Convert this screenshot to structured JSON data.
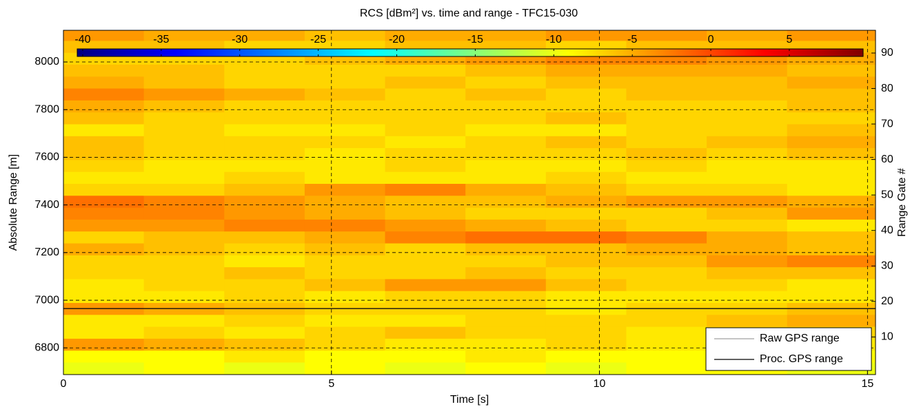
{
  "chart_data": {
    "type": "heatmap",
    "title": "RCS [dBm²] vs. time and range - TFC15-030",
    "xlabel": "Time [s]",
    "ylabel": "Absolute Range [m]",
    "y2label": "Range Gate #",
    "xlim": [
      0,
      15.15
    ],
    "xticks": [
      0,
      5,
      10,
      15
    ],
    "ylim": [
      6688,
      8133
    ],
    "yticks": [
      6800,
      7000,
      7200,
      7400,
      7600,
      7800,
      8000
    ],
    "y2lim": [
      -0.6,
      96.4
    ],
    "y2ticks": [
      10,
      20,
      30,
      40,
      50,
      60,
      70,
      80,
      90
    ],
    "grid": true,
    "colormap": "jet",
    "colorbar": {
      "clim": [
        -40.35,
        9.7
      ],
      "ticks": [
        -40,
        -35,
        -30,
        -25,
        -20,
        -15,
        -10,
        -5,
        0,
        5
      ]
    },
    "x_edges": [
      0,
      1.5,
      3,
      4.5,
      6,
      7.5,
      9,
      10.5,
      12,
      13.5,
      15.15
    ],
    "y_edges": [
      6690,
      6740,
      6790,
      6840,
      6890,
      6940,
      6990,
      7040,
      7090,
      7140,
      7190,
      7240,
      7290,
      7340,
      7390,
      7440,
      7490,
      7540,
      7590,
      7640,
      7690,
      7740,
      7790,
      7840,
      7890,
      7940,
      7990,
      8040,
      8090,
      8140
    ],
    "z": [
      [
        -10,
        -9,
        -10,
        -9,
        -10,
        -9,
        -10,
        -9,
        -9,
        -10
      ],
      [
        -9,
        -9,
        -8,
        -9,
        -9,
        -8,
        -9,
        -9,
        -8,
        -9
      ],
      [
        -4,
        -5,
        -6,
        -7,
        -8,
        -8,
        -7,
        -8,
        -7,
        -8
      ],
      [
        -8,
        -7,
        -8,
        -7,
        -6,
        -7,
        -7,
        -8,
        -7,
        -7
      ],
      [
        -8,
        -8,
        -7,
        -8,
        -8,
        -7,
        -7,
        -7,
        -6,
        -5
      ],
      [
        -4,
        -5,
        -6,
        -7,
        -7,
        -7,
        -8,
        -7,
        -7,
        -6
      ],
      [
        -8,
        -8,
        -7,
        -8,
        -7,
        -7,
        -8,
        -8,
        -8,
        -8
      ],
      [
        -8,
        -7,
        -7,
        -6,
        -4,
        -4,
        -6,
        -7,
        -7,
        -8
      ],
      [
        -7,
        -7,
        -6,
        -7,
        -7,
        -6,
        -7,
        -7,
        -6,
        -6
      ],
      [
        -7,
        -7,
        -8,
        -7,
        -7,
        -7,
        -6,
        -6,
        -4,
        -3
      ],
      [
        -5,
        -6,
        -7,
        -6,
        -7,
        -6,
        -6,
        -5,
        -5,
        -6
      ],
      [
        -7,
        -6,
        -6,
        -5,
        -3,
        -2,
        -2,
        -3,
        -5,
        -6
      ],
      [
        -4,
        -4,
        -3,
        -3,
        -4,
        -5,
        -6,
        -7,
        -7,
        -8
      ],
      [
        -3,
        -3,
        -4,
        -5,
        -6,
        -7,
        -7,
        -7,
        -6,
        -4
      ],
      [
        -2,
        -3,
        -4,
        -5,
        -6,
        -6,
        -5,
        -4,
        -4,
        -5
      ],
      [
        -7,
        -7,
        -6,
        -4,
        -3,
        -5,
        -6,
        -7,
        -7,
        -8
      ],
      [
        -8,
        -8,
        -7,
        -8,
        -8,
        -8,
        -7,
        -8,
        -8,
        -8
      ],
      [
        -7,
        -8,
        -8,
        -8,
        -7,
        -8,
        -8,
        -7,
        -8,
        -8
      ],
      [
        -6,
        -7,
        -7,
        -8,
        -7,
        -7,
        -7,
        -6,
        -7,
        -6
      ],
      [
        -6,
        -7,
        -7,
        -7,
        -8,
        -7,
        -6,
        -7,
        -6,
        -5
      ],
      [
        -8,
        -7,
        -8,
        -8,
        -7,
        -8,
        -8,
        -7,
        -7,
        -6
      ],
      [
        -6,
        -7,
        -7,
        -7,
        -7,
        -7,
        -6,
        -7,
        -7,
        -7
      ],
      [
        -5,
        -6,
        -7,
        -7,
        -7,
        -7,
        -7,
        -7,
        -7,
        -6
      ],
      [
        -3,
        -4,
        -5,
        -6,
        -7,
        -6,
        -7,
        -6,
        -6,
        -6
      ],
      [
        -5,
        -6,
        -7,
        -7,
        -6,
        -7,
        -6,
        -6,
        -6,
        -5
      ],
      [
        -6,
        -6,
        -7,
        -7,
        -7,
        -6,
        -5,
        -5,
        -5,
        -6
      ],
      [
        -7,
        -7,
        -7,
        -6,
        -5,
        -4,
        -3,
        -3,
        -4,
        -5
      ],
      [
        -6,
        -6,
        -7,
        -7,
        -6,
        -6,
        -7,
        -6,
        -6,
        -6
      ],
      [
        -4,
        -5,
        -5,
        -6,
        -5,
        -5,
        -4,
        -4,
        -5,
        -4
      ]
    ],
    "series": [
      {
        "name": "Raw GPS range",
        "color": "#a0a0a0",
        "x": [
          0,
          15.15
        ],
        "values": [
          6965,
          6965
        ]
      },
      {
        "name": "Proc. GPS range",
        "color": "#000000",
        "x": [
          0,
          15.15
        ],
        "values": [
          6965,
          6965
        ]
      }
    ],
    "legend": "lower right"
  }
}
